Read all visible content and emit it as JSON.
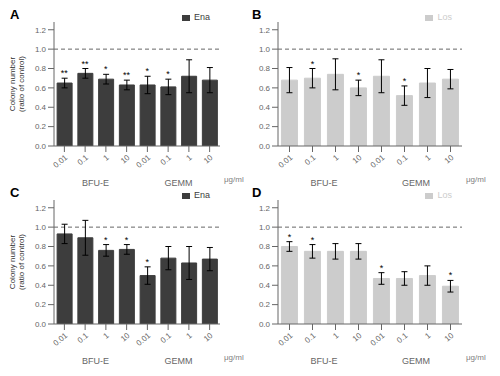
{
  "chart_data": [
    {
      "type": "bar",
      "title": "A",
      "categories": [
        "0.01",
        "0.1",
        "1",
        "10",
        "0.01",
        "0.1",
        "1",
        "10"
      ],
      "group_labels": [
        "BFU-E",
        "GEMM"
      ],
      "xlabel": "μg/ml",
      "ylabel": "Colony number\n(ratio of control)",
      "series": [
        {
          "name": "Ena",
          "color": "#3d3d3d",
          "values": [
            0.65,
            0.75,
            0.69,
            0.63,
            0.63,
            0.61,
            0.72,
            0.68
          ],
          "errors": [
            0.05,
            0.05,
            0.05,
            0.05,
            0.09,
            0.08,
            0.17,
            0.13
          ],
          "annotations": [
            "**",
            "**",
            "*",
            "**",
            "*",
            "*",
            null,
            null
          ]
        }
      ],
      "reference_line": 1.0,
      "ylim": [
        0,
        1.28
      ],
      "yticks": [
        {
          "value": 0,
          "label": "0.0"
        },
        0.2,
        0.4,
        0.6,
        0.8,
        {
          "value": 1,
          "label": "1.0"
        },
        1.2
      ],
      "legend": "upper right",
      "grid": false
    },
    {
      "type": "bar",
      "title": "B",
      "categories": [
        "0.01",
        "0.1",
        "1",
        "10",
        "0.01",
        "0.1",
        "1",
        "10"
      ],
      "group_labels": [
        "BFU-E",
        "GEMM"
      ],
      "xlabel": "μg/ml",
      "series": [
        {
          "name": "Los",
          "color": "#cccccc",
          "values": [
            0.68,
            0.7,
            0.74,
            0.6,
            0.72,
            0.52,
            0.65,
            0.69
          ],
          "errors": [
            0.13,
            0.1,
            0.16,
            0.08,
            0.17,
            0.1,
            0.15,
            0.1
          ],
          "annotations": [
            null,
            "*",
            null,
            "*",
            null,
            "*",
            null,
            null
          ]
        }
      ],
      "reference_line": 1.0,
      "ylim": [
        0,
        1.28
      ],
      "yticks": [
        {
          "value": 0,
          "label": "0.0"
        },
        0.2,
        0.4,
        0.6,
        0.8,
        {
          "value": 1,
          "label": "1.0"
        },
        1.2
      ],
      "legend": "upper right",
      "grid": false
    },
    {
      "type": "bar",
      "title": "C",
      "categories": [
        "0.01",
        "0.1",
        "1",
        "10",
        "0.01",
        "0.1",
        "1",
        "10"
      ],
      "group_labels": [
        "BFU-E",
        "GEMM"
      ],
      "xlabel": "μg/ml",
      "ylabel": "Colony number\n(ratio of control)",
      "series": [
        {
          "name": "Ena",
          "color": "#3d3d3d",
          "values": [
            0.93,
            0.89,
            0.76,
            0.77,
            0.5,
            0.68,
            0.63,
            0.67
          ],
          "errors": [
            0.1,
            0.18,
            0.06,
            0.05,
            0.09,
            0.12,
            0.17,
            0.12
          ],
          "annotations": [
            null,
            null,
            "*",
            "*",
            "*",
            null,
            null,
            null
          ]
        }
      ],
      "reference_line": 1.0,
      "ylim": [
        0,
        1.28
      ],
      "yticks": [
        {
          "value": 0,
          "label": "0.0"
        },
        0.2,
        0.4,
        0.6,
        0.8,
        {
          "value": 1,
          "label": "1.0"
        },
        1.2
      ],
      "legend": "upper right",
      "grid": false
    },
    {
      "type": "bar",
      "title": "D",
      "categories": [
        "0.01",
        "0.1",
        "1",
        "10",
        "0.01",
        "0.1",
        "1",
        "10"
      ],
      "group_labels": [
        "BFU-E",
        "GEMM"
      ],
      "xlabel": "μg/ml",
      "series": [
        {
          "name": "Los",
          "color": "#cccccc",
          "values": [
            0.8,
            0.75,
            0.75,
            0.75,
            0.47,
            0.47,
            0.5,
            0.39
          ],
          "errors": [
            0.05,
            0.07,
            0.08,
            0.08,
            0.06,
            0.07,
            0.1,
            0.06
          ],
          "annotations": [
            "*",
            "*",
            null,
            null,
            "*",
            null,
            null,
            "*"
          ]
        }
      ],
      "reference_line": 1.0,
      "ylim": [
        0,
        1.28
      ],
      "yticks": [
        {
          "value": 0,
          "label": "0.0"
        },
        0.2,
        0.4,
        0.6,
        0.8,
        {
          "value": 1,
          "label": "1.0"
        },
        1.2
      ],
      "legend": "upper right",
      "grid": false
    }
  ]
}
